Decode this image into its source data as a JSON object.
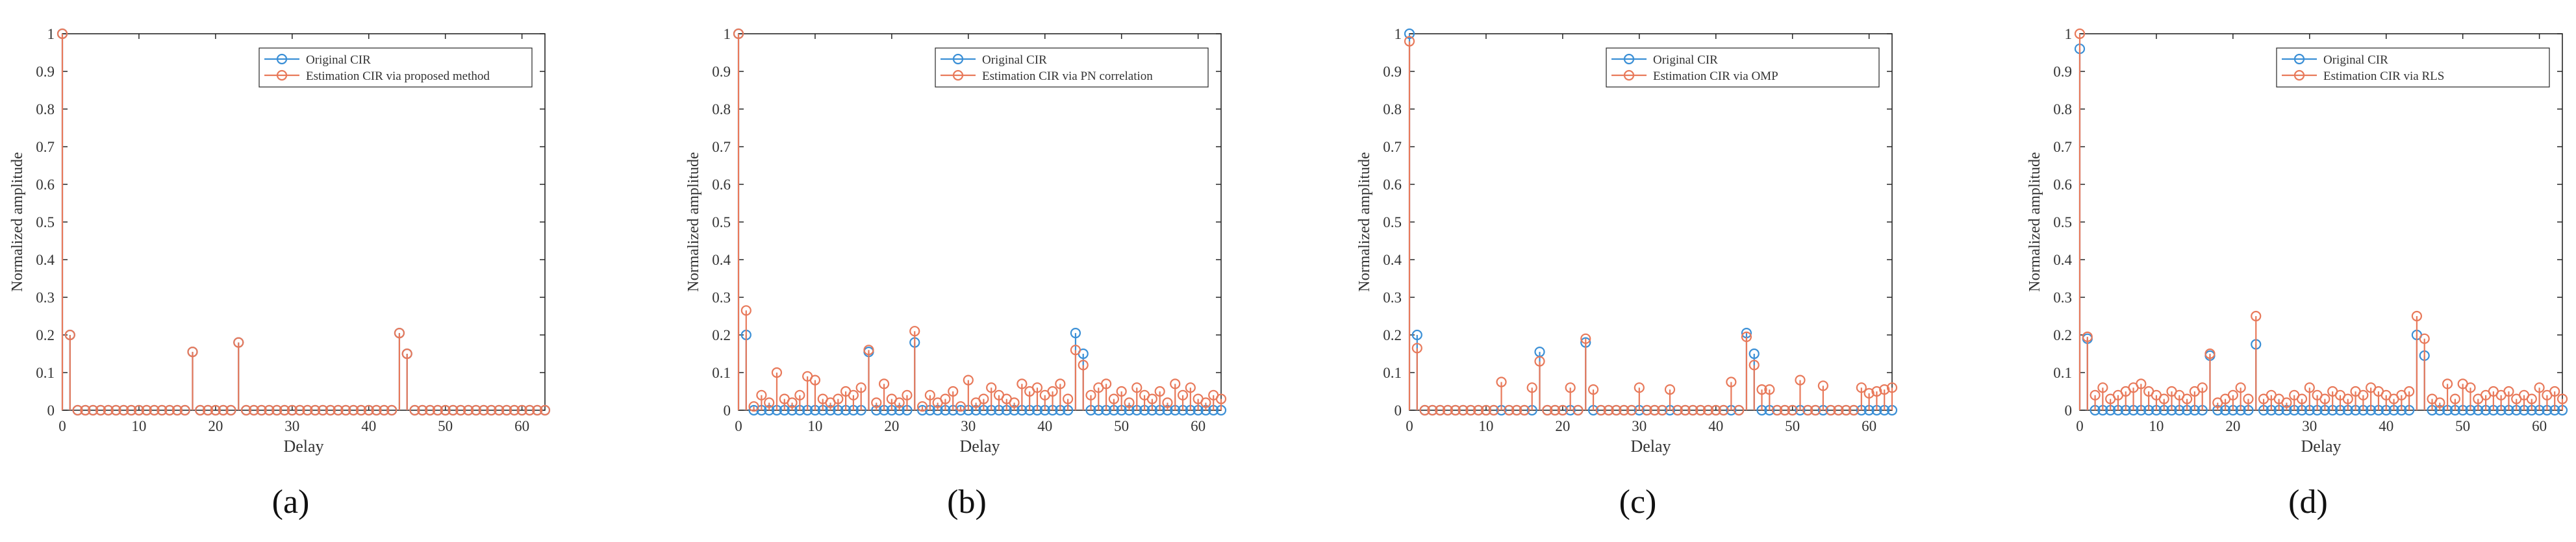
{
  "colors": {
    "original": "#3a8fd6",
    "estimate": "#e8795a",
    "axis": "#262626"
  },
  "chart_data": [
    {
      "type": "stem",
      "panel_label": "(a)",
      "xlabel": "Delay",
      "ylabel": "Normalized amplitude",
      "xlim": [
        0,
        63
      ],
      "ylim": [
        0,
        1
      ],
      "xticks": [
        0,
        10,
        20,
        30,
        40,
        50,
        60
      ],
      "yticks": [
        0,
        0.1,
        0.2,
        0.3,
        0.4,
        0.5,
        0.6,
        0.7,
        0.8,
        0.9,
        1
      ],
      "legend_position": "top-right",
      "series": [
        {
          "name": "Original CIR",
          "color": "#3a8fd6",
          "x": [
            0,
            1,
            2,
            3,
            4,
            5,
            6,
            7,
            8,
            9,
            10,
            11,
            12,
            13,
            14,
            15,
            16,
            17,
            18,
            19,
            20,
            21,
            22,
            23,
            24,
            25,
            26,
            27,
            28,
            29,
            30,
            31,
            32,
            33,
            34,
            35,
            36,
            37,
            38,
            39,
            40,
            41,
            42,
            43,
            44,
            45,
            46,
            47,
            48,
            49,
            50,
            51,
            52,
            53,
            54,
            55,
            56,
            57,
            58,
            59,
            60,
            61,
            62,
            63
          ],
          "values": [
            1,
            0.2,
            0,
            0,
            0,
            0,
            0,
            0,
            0,
            0,
            0,
            0,
            0,
            0,
            0,
            0,
            0,
            0.155,
            0,
            0,
            0,
            0,
            0,
            0.18,
            0,
            0,
            0,
            0,
            0,
            0,
            0,
            0,
            0,
            0,
            0,
            0,
            0,
            0,
            0,
            0,
            0,
            0,
            0,
            0,
            0.205,
            0.15,
            0,
            0,
            0,
            0,
            0,
            0,
            0,
            0,
            0,
            0,
            0,
            0,
            0,
            0,
            0,
            0,
            0,
            0
          ]
        },
        {
          "name": "Estimation CIR via proposed method",
          "color": "#e8795a",
          "x": [
            0,
            1,
            2,
            3,
            4,
            5,
            6,
            7,
            8,
            9,
            10,
            11,
            12,
            13,
            14,
            15,
            16,
            17,
            18,
            19,
            20,
            21,
            22,
            23,
            24,
            25,
            26,
            27,
            28,
            29,
            30,
            31,
            32,
            33,
            34,
            35,
            36,
            37,
            38,
            39,
            40,
            41,
            42,
            43,
            44,
            45,
            46,
            47,
            48,
            49,
            50,
            51,
            52,
            53,
            54,
            55,
            56,
            57,
            58,
            59,
            60,
            61,
            62,
            63
          ],
          "values": [
            1,
            0.2,
            0,
            0,
            0,
            0,
            0,
            0,
            0,
            0,
            0,
            0,
            0,
            0,
            0,
            0,
            0,
            0.155,
            0,
            0,
            0,
            0,
            0,
            0.18,
            0,
            0,
            0,
            0,
            0,
            0,
            0,
            0,
            0,
            0,
            0,
            0,
            0,
            0,
            0,
            0,
            0,
            0,
            0,
            0,
            0.205,
            0.15,
            0,
            0,
            0,
            0,
            0,
            0,
            0,
            0,
            0,
            0,
            0,
            0,
            0,
            0,
            0,
            0,
            0,
            0
          ]
        }
      ]
    },
    {
      "type": "stem",
      "panel_label": "(b)",
      "xlabel": "Delay",
      "ylabel": "Normalized amplitude",
      "xlim": [
        0,
        63
      ],
      "ylim": [
        0,
        1
      ],
      "xticks": [
        0,
        10,
        20,
        30,
        40,
        50,
        60
      ],
      "yticks": [
        0,
        0.1,
        0.2,
        0.3,
        0.4,
        0.5,
        0.6,
        0.7,
        0.8,
        0.9,
        1
      ],
      "legend_position": "top-right",
      "series": [
        {
          "name": "Original CIR",
          "color": "#3a8fd6",
          "x": [
            0,
            1,
            2,
            3,
            4,
            5,
            6,
            7,
            8,
            9,
            10,
            11,
            12,
            13,
            14,
            15,
            16,
            17,
            18,
            19,
            20,
            21,
            22,
            23,
            24,
            25,
            26,
            27,
            28,
            29,
            30,
            31,
            32,
            33,
            34,
            35,
            36,
            37,
            38,
            39,
            40,
            41,
            42,
            43,
            44,
            45,
            46,
            47,
            48,
            49,
            50,
            51,
            52,
            53,
            54,
            55,
            56,
            57,
            58,
            59,
            60,
            61,
            62,
            63
          ],
          "values": [
            1,
            0.2,
            0,
            0,
            0,
            0,
            0,
            0,
            0,
            0,
            0,
            0,
            0,
            0,
            0,
            0,
            0,
            0.155,
            0,
            0,
            0,
            0,
            0,
            0.18,
            0,
            0,
            0,
            0,
            0,
            0,
            0,
            0,
            0,
            0,
            0,
            0,
            0,
            0,
            0,
            0,
            0,
            0,
            0,
            0,
            0.205,
            0.15,
            0,
            0,
            0,
            0,
            0,
            0,
            0,
            0,
            0,
            0,
            0,
            0,
            0,
            0,
            0,
            0,
            0,
            0
          ]
        },
        {
          "name": "Estimation CIR via PN correlation",
          "color": "#e8795a",
          "x": [
            0,
            1,
            2,
            3,
            4,
            5,
            6,
            7,
            8,
            9,
            10,
            11,
            12,
            13,
            14,
            15,
            16,
            17,
            18,
            19,
            20,
            21,
            22,
            23,
            24,
            25,
            26,
            27,
            28,
            29,
            30,
            31,
            32,
            33,
            34,
            35,
            36,
            37,
            38,
            39,
            40,
            41,
            42,
            43,
            44,
            45,
            46,
            47,
            48,
            49,
            50,
            51,
            52,
            53,
            54,
            55,
            56,
            57,
            58,
            59,
            60,
            61,
            62,
            63
          ],
          "values": [
            1,
            0.265,
            0.01,
            0.04,
            0.02,
            0.1,
            0.03,
            0.02,
            0.04,
            0.09,
            0.08,
            0.03,
            0.02,
            0.03,
            0.05,
            0.04,
            0.06,
            0.16,
            0.02,
            0.07,
            0.03,
            0.02,
            0.04,
            0.21,
            0.01,
            0.04,
            0.02,
            0.03,
            0.05,
            0.01,
            0.08,
            0.02,
            0.03,
            0.06,
            0.04,
            0.03,
            0.02,
            0.07,
            0.05,
            0.06,
            0.04,
            0.05,
            0.07,
            0.03,
            0.16,
            0.12,
            0.04,
            0.06,
            0.07,
            0.03,
            0.05,
            0.02,
            0.06,
            0.04,
            0.03,
            0.05,
            0.02,
            0.07,
            0.04,
            0.06,
            0.03,
            0.02,
            0.04,
            0.03
          ]
        }
      ]
    },
    {
      "type": "stem",
      "panel_label": "(c)",
      "xlabel": "Delay",
      "ylabel": "Normalized amplitude",
      "xlim": [
        0,
        63
      ],
      "ylim": [
        0,
        1
      ],
      "xticks": [
        0,
        10,
        20,
        30,
        40,
        50,
        60
      ],
      "yticks": [
        0,
        0.1,
        0.2,
        0.3,
        0.4,
        0.5,
        0.6,
        0.7,
        0.8,
        0.9,
        1
      ],
      "legend_position": "top-right",
      "series": [
        {
          "name": "Original CIR",
          "color": "#3a8fd6",
          "x": [
            0,
            1,
            2,
            3,
            4,
            5,
            6,
            7,
            8,
            9,
            10,
            11,
            12,
            13,
            14,
            15,
            16,
            17,
            18,
            19,
            20,
            21,
            22,
            23,
            24,
            25,
            26,
            27,
            28,
            29,
            30,
            31,
            32,
            33,
            34,
            35,
            36,
            37,
            38,
            39,
            40,
            41,
            42,
            43,
            44,
            45,
            46,
            47,
            48,
            49,
            50,
            51,
            52,
            53,
            54,
            55,
            56,
            57,
            58,
            59,
            60,
            61,
            62,
            63
          ],
          "values": [
            1,
            0.2,
            0,
            0,
            0,
            0,
            0,
            0,
            0,
            0,
            0,
            0,
            0,
            0,
            0,
            0,
            0,
            0.155,
            0,
            0,
            0,
            0,
            0,
            0.18,
            0,
            0,
            0,
            0,
            0,
            0,
            0,
            0,
            0,
            0,
            0,
            0,
            0,
            0,
            0,
            0,
            0,
            0,
            0,
            0,
            0.205,
            0.15,
            0,
            0,
            0,
            0,
            0,
            0,
            0,
            0,
            0,
            0,
            0,
            0,
            0,
            0,
            0,
            0,
            0,
            0
          ]
        },
        {
          "name": "Estimation CIR via OMP",
          "color": "#e8795a",
          "x": [
            0,
            1,
            2,
            3,
            4,
            5,
            6,
            7,
            8,
            9,
            10,
            11,
            12,
            13,
            14,
            15,
            16,
            17,
            18,
            19,
            20,
            21,
            22,
            23,
            24,
            25,
            26,
            27,
            28,
            29,
            30,
            31,
            32,
            33,
            34,
            35,
            36,
            37,
            38,
            39,
            40,
            41,
            42,
            43,
            44,
            45,
            46,
            47,
            48,
            49,
            50,
            51,
            52,
            53,
            54,
            55,
            56,
            57,
            58,
            59,
            60,
            61,
            62,
            63
          ],
          "values": [
            0.98,
            0.165,
            0,
            0,
            0,
            0,
            0,
            0,
            0,
            0,
            0,
            0,
            0.075,
            0,
            0,
            0,
            0.06,
            0.13,
            0,
            0,
            0,
            0.06,
            0,
            0.19,
            0.055,
            0,
            0,
            0,
            0,
            0,
            0.06,
            0,
            0,
            0,
            0.055,
            0,
            0,
            0,
            0,
            0,
            0,
            0,
            0.075,
            0,
            0.195,
            0.12,
            0.055,
            0.055,
            0,
            0,
            0,
            0.08,
            0,
            0,
            0.065,
            0,
            0,
            0,
            0,
            0.06,
            0.045,
            0.05,
            0.055,
            0.06
          ]
        }
      ]
    },
    {
      "type": "stem",
      "panel_label": "(d)",
      "xlabel": "Delay",
      "ylabel": "Normalized amplitude",
      "xlim": [
        0,
        63
      ],
      "ylim": [
        0,
        1
      ],
      "xticks": [
        0,
        10,
        20,
        30,
        40,
        50,
        60
      ],
      "yticks": [
        0,
        0.1,
        0.2,
        0.3,
        0.4,
        0.5,
        0.6,
        0.7,
        0.8,
        0.9,
        1
      ],
      "legend_position": "top-right",
      "series": [
        {
          "name": "Original CIR",
          "color": "#3a8fd6",
          "x": [
            0,
            1,
            2,
            3,
            4,
            5,
            6,
            7,
            8,
            9,
            10,
            11,
            12,
            13,
            14,
            15,
            16,
            17,
            18,
            19,
            20,
            21,
            22,
            23,
            24,
            25,
            26,
            27,
            28,
            29,
            30,
            31,
            32,
            33,
            34,
            35,
            36,
            37,
            38,
            39,
            40,
            41,
            42,
            43,
            44,
            45,
            46,
            47,
            48,
            49,
            50,
            51,
            52,
            53,
            54,
            55,
            56,
            57,
            58,
            59,
            60,
            61,
            62,
            63
          ],
          "values": [
            0.96,
            0.19,
            0,
            0,
            0,
            0,
            0,
            0,
            0,
            0,
            0,
            0,
            0,
            0,
            0,
            0,
            0,
            0.145,
            0,
            0,
            0,
            0,
            0,
            0.175,
            0,
            0,
            0,
            0,
            0,
            0,
            0,
            0,
            0,
            0,
            0,
            0,
            0,
            0,
            0,
            0,
            0,
            0,
            0,
            0,
            0.2,
            0.145,
            0,
            0,
            0,
            0,
            0,
            0,
            0,
            0,
            0,
            0,
            0,
            0,
            0,
            0,
            0,
            0,
            0,
            0
          ]
        },
        {
          "name": "Estimation CIR via RLS",
          "color": "#e8795a",
          "x": [
            0,
            1,
            2,
            3,
            4,
            5,
            6,
            7,
            8,
            9,
            10,
            11,
            12,
            13,
            14,
            15,
            16,
            17,
            18,
            19,
            20,
            21,
            22,
            23,
            24,
            25,
            26,
            27,
            28,
            29,
            30,
            31,
            32,
            33,
            34,
            35,
            36,
            37,
            38,
            39,
            40,
            41,
            42,
            43,
            44,
            45,
            46,
            47,
            48,
            49,
            50,
            51,
            52,
            53,
            54,
            55,
            56,
            57,
            58,
            59,
            60,
            61,
            62,
            63
          ],
          "values": [
            1,
            0.195,
            0.04,
            0.06,
            0.03,
            0.04,
            0.05,
            0.06,
            0.07,
            0.05,
            0.04,
            0.03,
            0.05,
            0.04,
            0.03,
            0.05,
            0.06,
            0.15,
            0.02,
            0.03,
            0.04,
            0.06,
            0.03,
            0.25,
            0.03,
            0.04,
            0.03,
            0.02,
            0.04,
            0.03,
            0.06,
            0.04,
            0.03,
            0.05,
            0.04,
            0.03,
            0.05,
            0.04,
            0.06,
            0.05,
            0.04,
            0.03,
            0.04,
            0.05,
            0.25,
            0.19,
            0.03,
            0.02,
            0.07,
            0.03,
            0.07,
            0.06,
            0.03,
            0.04,
            0.05,
            0.04,
            0.05,
            0.03,
            0.04,
            0.03,
            0.06,
            0.04,
            0.05,
            0.03
          ]
        }
      ]
    }
  ]
}
